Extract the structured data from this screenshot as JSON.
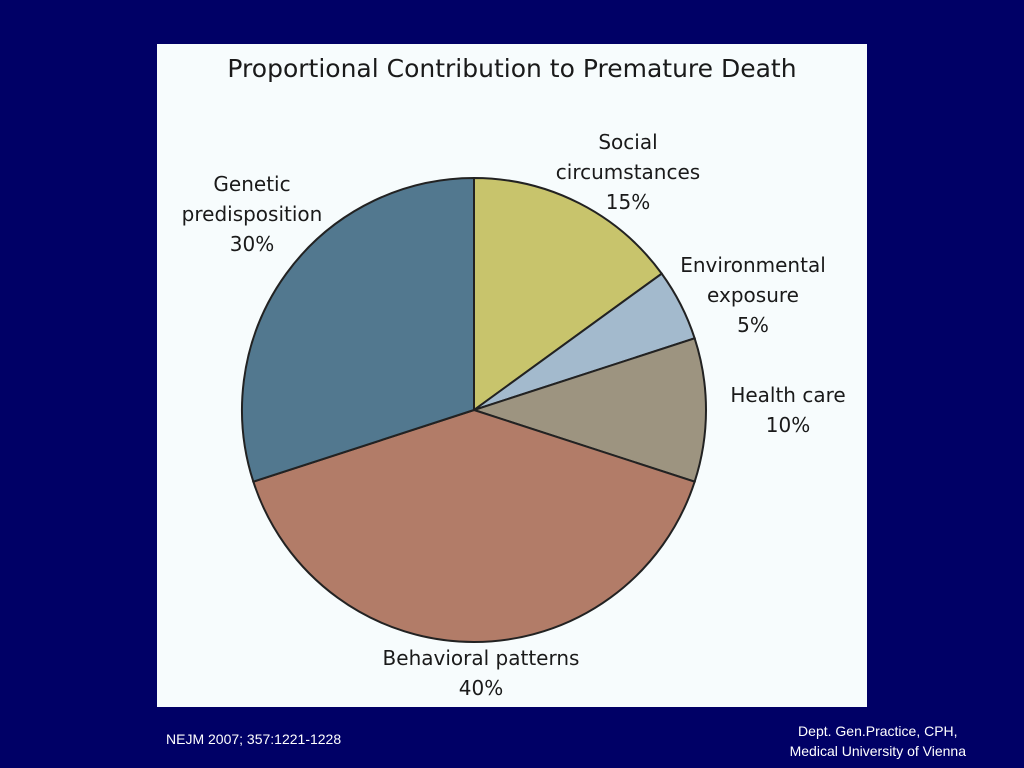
{
  "chart_data": {
    "type": "pie",
    "title": "Proportional Contribution to Premature Death",
    "slices": [
      {
        "label": [
          "Social",
          "circumstances"
        ],
        "value": 15,
        "value_label": "15%",
        "color": "#c8c46c"
      },
      {
        "label": [
          "Environmental",
          "exposure"
        ],
        "value": 5,
        "value_label": "5%",
        "color": "#a3bacd"
      },
      {
        "label": [
          "Health care"
        ],
        "value": 10,
        "value_label": "10%",
        "color": "#9d9480"
      },
      {
        "label": [
          "Behavioral patterns"
        ],
        "value": 40,
        "value_label": "40%",
        "color": "#b27c68"
      },
      {
        "label": [
          "Genetic",
          "predisposition"
        ],
        "value": 30,
        "value_label": "30%",
        "color": "#52788f"
      }
    ]
  },
  "footer": {
    "citation": "NEJM 2007; 357:1221-1228",
    "affiliation_line1": "Dept. Gen.Practice, CPH,",
    "affiliation_line2": "Medical University of Vienna"
  }
}
